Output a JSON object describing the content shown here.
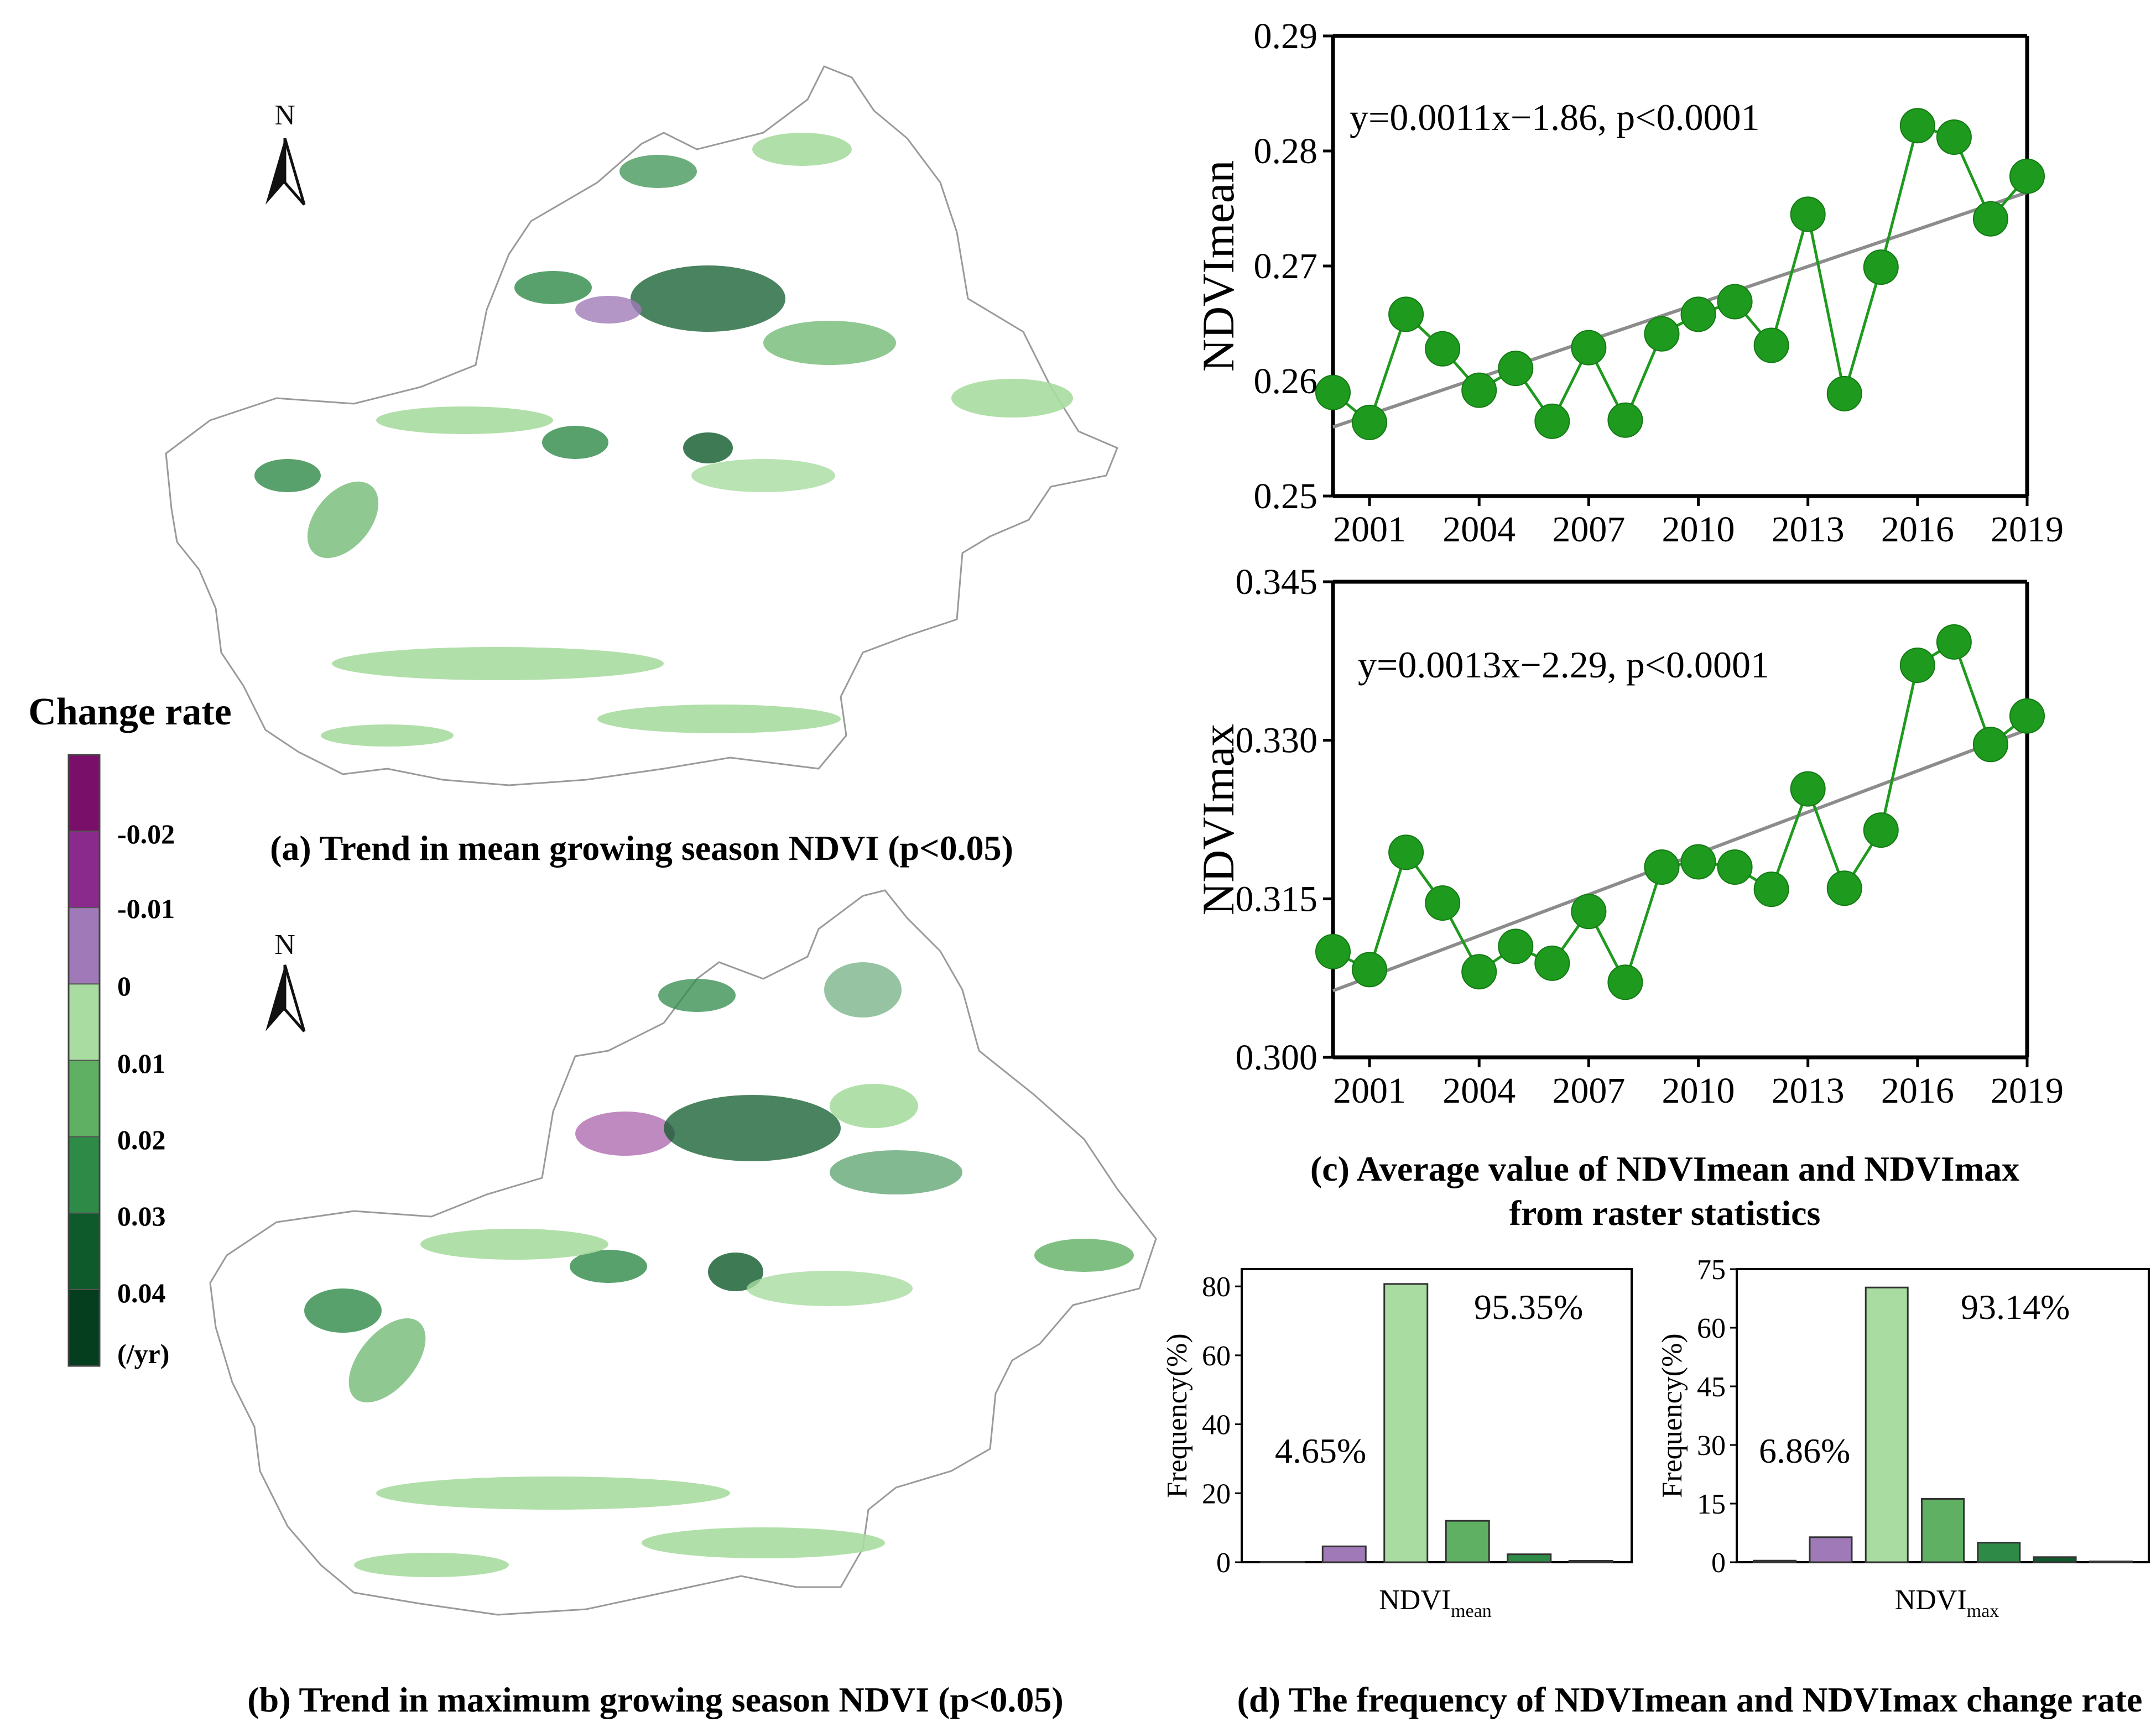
{
  "captions": {
    "a": "(a) Trend in mean growing season NDVI (p<0.05)",
    "b": "(b) Trend in maximum growing season NDVI (p<0.05)",
    "c_line1": "(c) Average value of NDVImean and NDVImax",
    "c_line2": "from raster statistics",
    "d": "(d) The frequency of NDVImean and NDVImax change rate"
  },
  "north_label": "N",
  "legend": {
    "title": "Change rate",
    "labels": [
      "-0.02",
      "-0.01",
      "0",
      "0.01",
      "0.02",
      "0.03",
      "0.04",
      "(/yr)"
    ],
    "colors": [
      "#7a0f6a",
      "#8a2a8c",
      "#a07ab8",
      "#a8dca0",
      "#5fb063",
      "#2e8a47",
      "#0e5a2a",
      "#053d1f"
    ]
  },
  "colors": {
    "point": "#1e9a1e",
    "point_edge": "#137a13",
    "fit_line": "#8c8c8c",
    "map_fill": "#ffffff",
    "map_outline": "#999999"
  },
  "chart_data": [
    {
      "type": "line",
      "id": "ndvi-mean-trend",
      "ylabel": "NDVImean",
      "equation": "y=0.0011x−1.86, p<0.0001",
      "x": [
        2000,
        2001,
        2002,
        2003,
        2004,
        2005,
        2006,
        2007,
        2008,
        2009,
        2010,
        2011,
        2012,
        2013,
        2014,
        2015,
        2016,
        2017,
        2018,
        2019
      ],
      "values": [
        0.259,
        0.2564,
        0.2658,
        0.2628,
        0.2592,
        0.2611,
        0.2565,
        0.2629,
        0.2566,
        0.2641,
        0.2658,
        0.2669,
        0.2631,
        0.2745,
        0.2589,
        0.2699,
        0.2822,
        0.2812,
        0.2741,
        0.2778
      ],
      "fit": {
        "start": 0.256,
        "end": 0.2764
      },
      "xlim": [
        2000,
        2019
      ],
      "ylim": [
        0.25,
        0.29
      ],
      "xticks": [
        "2001",
        "2004",
        "2007",
        "2010",
        "2013",
        "2016",
        "2019"
      ],
      "xtick_values": [
        2001,
        2004,
        2007,
        2010,
        2013,
        2016,
        2019
      ],
      "yticks": [
        "0.25",
        "0.26",
        "0.27",
        "0.28",
        "0.29"
      ],
      "ytick_values": [
        0.25,
        0.26,
        0.27,
        0.28,
        0.29
      ]
    },
    {
      "type": "line",
      "id": "ndvi-max-trend",
      "ylabel": "NDVImax",
      "equation": "y=0.0013x−2.29, p<0.0001",
      "x": [
        2000,
        2001,
        2002,
        2003,
        2004,
        2005,
        2006,
        2007,
        2008,
        2009,
        2010,
        2011,
        2012,
        2013,
        2014,
        2015,
        2016,
        2017,
        2018,
        2019
      ],
      "values": [
        0.31,
        0.3083,
        0.3194,
        0.3146,
        0.3081,
        0.3105,
        0.3089,
        0.3138,
        0.3071,
        0.318,
        0.3185,
        0.318,
        0.3159,
        0.3254,
        0.316,
        0.3215,
        0.3371,
        0.3393,
        0.3296,
        0.3323
      ],
      "fit": {
        "start": 0.3063,
        "end": 0.331
      },
      "xlim": [
        2000,
        2019
      ],
      "ylim": [
        0.3,
        0.345
      ],
      "xticks": [
        "2001",
        "2004",
        "2007",
        "2010",
        "2013",
        "2016",
        "2019"
      ],
      "xtick_values": [
        2001,
        2004,
        2007,
        2010,
        2013,
        2016,
        2019
      ],
      "yticks": [
        "0.300",
        "0.315",
        "0.330",
        "0.345"
      ],
      "ytick_values": [
        0.3,
        0.315,
        0.33,
        0.345
      ]
    },
    {
      "type": "bar",
      "id": "ndvi-mean-frequency",
      "ylabel": "Frequency(%)",
      "xlabel_main": "NDVI",
      "xlabel_sub": "mean",
      "values": [
        0.1,
        4.6,
        80.7,
        12.0,
        2.3,
        0.4
      ],
      "bar_colors": [
        "#7a0f6a",
        "#a07ab8",
        "#a8dca0",
        "#5fb063",
        "#2e8a47",
        "#0e5a2a"
      ],
      "ylim": [
        0,
        85
      ],
      "yticks": [
        "0",
        "20",
        "40",
        "60",
        "80"
      ],
      "ytick_values": [
        0,
        20,
        40,
        60,
        80
      ],
      "annotations": {
        "negative": "4.65%",
        "positive": "95.35%"
      }
    },
    {
      "type": "bar",
      "id": "ndvi-max-frequency",
      "ylabel": "Frequency(%)",
      "xlabel_main": "NDVI",
      "xlabel_sub": "max",
      "values": [
        0.4,
        6.4,
        70.3,
        16.2,
        5.0,
        1.3,
        0.2
      ],
      "bar_colors": [
        "#7a0f6a",
        "#a07ab8",
        "#a8dca0",
        "#5fb063",
        "#2e8a47",
        "#0e5a2a",
        "#053d1f"
      ],
      "ylim": [
        0,
        75
      ],
      "yticks": [
        "0",
        "15",
        "30",
        "45",
        "60",
        "75"
      ],
      "ytick_values": [
        0,
        15,
        30,
        45,
        60,
        75
      ],
      "annotations": {
        "negative": "6.86%",
        "positive": "93.14%"
      }
    }
  ]
}
